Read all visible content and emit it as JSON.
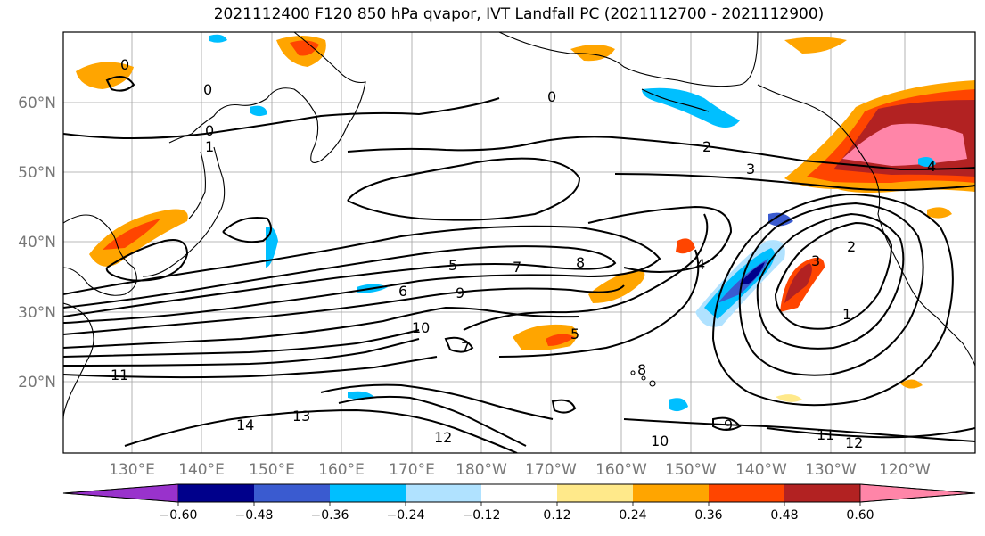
{
  "title": "2021112400 F120 850 hPa qvapor, IVT Landfall PC (2021112700 - 2021112900)",
  "map": {
    "lon_labels": [
      "130°E",
      "140°E",
      "150°E",
      "160°E",
      "170°E",
      "180°W",
      "170°W",
      "160°W",
      "150°W",
      "140°W",
      "130°W",
      "120°W"
    ],
    "lat_labels": [
      "60°N",
      "50°N",
      "40°N",
      "30°N",
      "20°N"
    ],
    "contour_labels": [
      "0",
      "0",
      "0",
      "0",
      "1",
      "2",
      "3",
      "4",
      "5",
      "6",
      "7",
      "8",
      "9",
      "10",
      "11",
      "12",
      "13",
      "14",
      "1",
      "2",
      "3",
      "4",
      "5",
      "7",
      "8",
      "9",
      "10",
      "11",
      "12"
    ]
  },
  "colorbar": {
    "ticks": [
      "−0.60",
      "−0.48",
      "−0.36",
      "−0.24",
      "−0.12",
      "0.12",
      "0.24",
      "0.36",
      "0.48",
      "0.60"
    ],
    "colors": [
      "#9932cc",
      "#00008b",
      "#3a5bd0",
      "#00bfff",
      "#b0e2ff",
      "#ffffff",
      "#ffe98a",
      "#ffa500",
      "#ff4500",
      "#b22222",
      "#ff85a8"
    ]
  }
}
